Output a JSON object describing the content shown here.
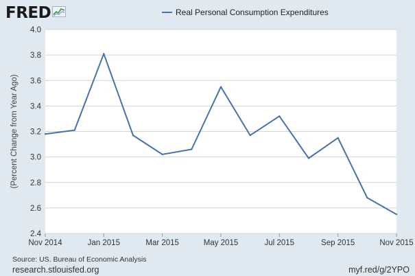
{
  "brand": {
    "logo_text": "FRED",
    "logo_icon": "chart-line-icon",
    "logo_color": "#1a1a1a"
  },
  "chart_data": {
    "type": "line",
    "title": "",
    "xlabel": "",
    "ylabel": "(Percent Change from Year Ago)",
    "x": [
      "Nov 2014",
      "Dec 2014",
      "Jan 2015",
      "Feb 2015",
      "Mar 2015",
      "Apr 2015",
      "May 2015",
      "Jun 2015",
      "Jul 2015",
      "Aug 2015",
      "Sep 2015",
      "Oct 2015",
      "Nov 2015"
    ],
    "x_tick_labels": [
      "Nov 2014",
      "Jan 2015",
      "Mar 2015",
      "May 2015",
      "Jul 2015",
      "Sep 2015",
      "Nov 2015"
    ],
    "series": [
      {
        "name": "Real Personal Consumption Expenditures",
        "color": "#4572a7",
        "values": [
          3.18,
          3.21,
          3.81,
          3.17,
          3.02,
          3.06,
          3.55,
          3.17,
          3.32,
          2.99,
          3.15,
          2.68,
          2.55
        ]
      }
    ],
    "ylim": [
      2.4,
      4.0
    ],
    "y_ticks": [
      "2.4",
      "2.6",
      "2.8",
      "3.0",
      "3.2",
      "3.4",
      "3.6",
      "3.8",
      "4.0"
    ],
    "grid": true,
    "legend_position": "top-center",
    "plot_background": "#ffffff",
    "page_background": "#e1e9f0"
  },
  "footer": {
    "source": "Source: US. Bureau of Economic Analysis",
    "research": "research.stlouisfed.org",
    "short_link": "myf.red/g/2YPO"
  }
}
